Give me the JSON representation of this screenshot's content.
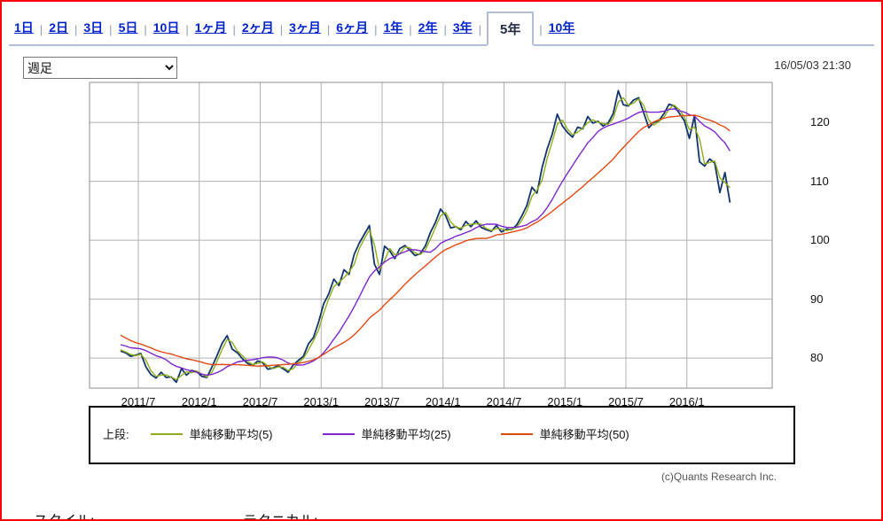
{
  "page": {
    "timestamp": "16/05/03 21:30",
    "copyright": "(c)Quants Research Inc.",
    "style_label": "スタイル:",
    "technical_label": "テクニカル:"
  },
  "tabs": {
    "items": [
      "1日",
      "2日",
      "3日",
      "5日",
      "10日",
      "1ヶ月",
      "2ヶ月",
      "3ヶ月",
      "6ヶ月",
      "1年",
      "2年",
      "3年",
      "5年",
      "10年"
    ],
    "active": "5年"
  },
  "chart_type_select": {
    "value": "週足",
    "options": [
      "週足"
    ]
  },
  "legend": {
    "prefix": "上段:"
  },
  "chart_data": {
    "type": "line",
    "title": "",
    "xlabel": "",
    "ylabel": "",
    "grid": true,
    "legend_position": "bottom",
    "xlim": [
      2011.1,
      2016.7
    ],
    "ylim": [
      74.9,
      126.8
    ],
    "x_ticks": [
      {
        "t": 2011.5,
        "label": "2011/7"
      },
      {
        "t": 2012.0,
        "label": "2012/1"
      },
      {
        "t": 2012.5,
        "label": "2012/7"
      },
      {
        "t": 2013.0,
        "label": "2013/1"
      },
      {
        "t": 2013.5,
        "label": "2013/7"
      },
      {
        "t": 2014.0,
        "label": "2014/1"
      },
      {
        "t": 2014.5,
        "label": "2014/7"
      },
      {
        "t": 2015.0,
        "label": "2015/1"
      },
      {
        "t": 2015.5,
        "label": "2015/7"
      },
      {
        "t": 2016.0,
        "label": "2016/1"
      }
    ],
    "y_ticks": [
      80,
      90,
      100,
      110,
      120
    ],
    "x_start": 2011.354,
    "x_step": 0.041667,
    "price": {
      "color": "#13356e",
      "values": [
        81.2,
        80.9,
        80.3,
        80.5,
        80.8,
        78.5,
        77.2,
        76.6,
        77.6,
        76.7,
        76.8,
        75.9,
        78.2,
        77.1,
        77.9,
        77.7,
        76.9,
        76.7,
        78.5,
        80.4,
        82.5,
        83.8,
        81.5,
        80.9,
        79.9,
        79.1,
        78.7,
        79.5,
        79.2,
        78.1,
        78.3,
        78.7,
        78.2,
        77.6,
        78.8,
        79.6,
        80.3,
        82.4,
        83.5,
        86.1,
        89.2,
        90.9,
        93.4,
        92.3,
        95.0,
        94.2,
        97.6,
        99.5,
        101.0,
        102.5,
        95.9,
        94.2,
        99.0,
        98.2,
        96.9,
        98.6,
        99.1,
        98.3,
        97.4,
        97.7,
        99.0,
        101.3,
        103.0,
        105.3,
        104.2,
        102.1,
        102.3,
        101.8,
        103.2,
        102.3,
        103.3,
        102.2,
        101.8,
        101.5,
        102.5,
        101.4,
        101.9,
        101.8,
        102.6,
        104.1,
        105.9,
        109.0,
        108.0,
        112.3,
        115.5,
        118.0,
        121.4,
        119.4,
        118.3,
        117.5,
        119.2,
        118.9,
        121.0,
        119.9,
        120.2,
        119.4,
        119.9,
        121.5,
        125.4,
        123.0,
        122.8,
        123.8,
        124.2,
        121.7,
        119.1,
        120.0,
        120.3,
        121.5,
        123.1,
        122.8,
        121.6,
        120.3,
        117.3,
        121.1,
        113.3,
        112.6,
        113.8,
        113.1,
        108.1,
        111.5,
        106.4
      ]
    },
    "pre_window_values": [
      93.0,
      91.2,
      91.5,
      90.9,
      88.5,
      86.4,
      85.9,
      84.7,
      85.1,
      84.2,
      82.0,
      80.4,
      82.5,
      83.6,
      83.8,
      81.5,
      82.0,
      82.1,
      82.5,
      81.7,
      80.9,
      81.8,
      84.5,
      81.6
    ],
    "sma_series": [
      {
        "label": "単純移動平均(5)",
        "window": 2,
        "color": "#8fae1b"
      },
      {
        "label": "単純移動平均(25)",
        "window": 12,
        "color": "#7d26cd"
      },
      {
        "label": "単純移動平均(50)",
        "window": 23,
        "color": "#e04a12"
      }
    ]
  }
}
